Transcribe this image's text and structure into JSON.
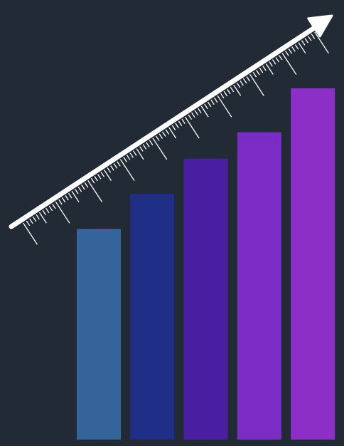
{
  "background_color": "#222a35",
  "arrow_color": "#ffffff",
  "bars": [
    {
      "level": 0.6,
      "color": "#35649b"
    },
    {
      "level": 0.7,
      "color": "#1f2e86"
    },
    {
      "level": 0.8,
      "color": "#4a1ea0"
    },
    {
      "level": 0.875,
      "color": "#7a2cc4"
    },
    {
      "level": 1.0,
      "color": "#8b2fc7"
    }
  ],
  "ruler": {
    "minor_ticks_per_major": 10,
    "major_tick_count": 9
  }
}
